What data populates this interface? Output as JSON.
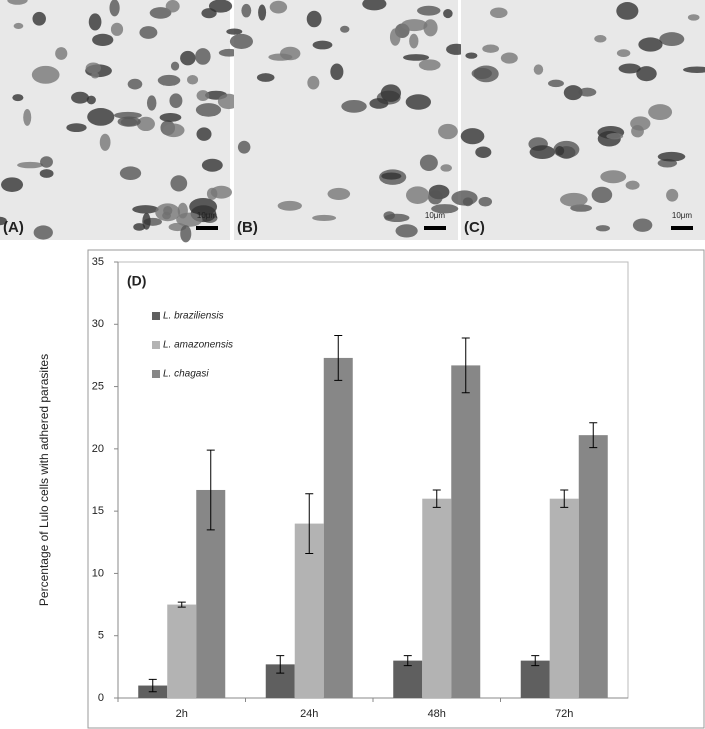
{
  "panels": [
    {
      "label": "(A)",
      "scale": "10μm"
    },
    {
      "label": "(B)",
      "scale": "10μm"
    },
    {
      "label": "(C)",
      "scale": "10μm"
    }
  ],
  "chart_data": {
    "type": "bar",
    "annotation": "(D)",
    "y_label": "Percentage of Lulo cells with adhered parasites",
    "categories": [
      "2h",
      "24h",
      "48h",
      "72h"
    ],
    "series": [
      {
        "name": "L. braziliensis",
        "color": "#5f5f5f",
        "values": [
          1,
          2.7,
          3,
          3
        ],
        "errors": [
          0.5,
          0.7,
          0.4,
          0.4
        ]
      },
      {
        "name": "L. amazonensis",
        "color": "#b3b3b3",
        "values": [
          7.5,
          14,
          16,
          16
        ],
        "errors": [
          0.2,
          2.4,
          0.7,
          0.7
        ]
      },
      {
        "name": "L. chagasi",
        "color": "#878787",
        "values": [
          16.7,
          27.3,
          26.7,
          21.1
        ],
        "errors": [
          3.2,
          1.8,
          2.2,
          1.0
        ]
      }
    ],
    "ylim": [
      0,
      35
    ],
    "yticks": [
      0,
      5,
      10,
      15,
      20,
      25,
      30,
      35
    ],
    "legend": "upper-left"
  }
}
